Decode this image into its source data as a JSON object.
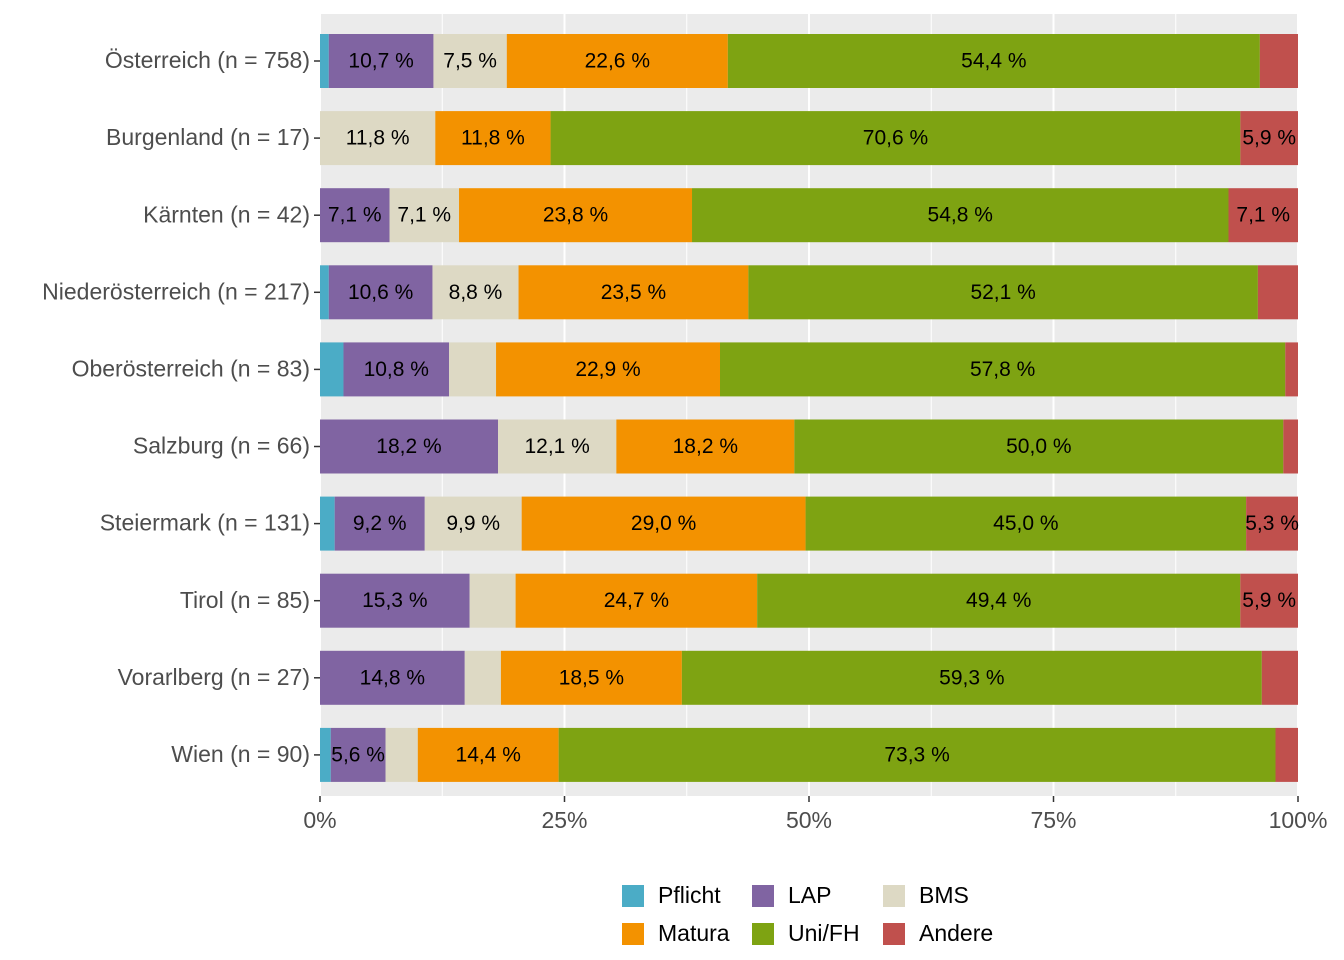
{
  "chart_data": {
    "type": "bar",
    "orientation": "horizontal",
    "stacked": "percent",
    "categories": [
      "Österreich (n = 758)",
      "Burgenland (n = 17)",
      "Kärnten (n = 42)",
      "Niederösterreich (n = 217)",
      "Oberösterreich (n = 83)",
      "Salzburg (n = 66)",
      "Steiermark (n = 131)",
      "Tirol (n = 85)",
      "Vorarlberg (n = 27)",
      "Wien (n = 90)"
    ],
    "series": [
      {
        "name": "Pflicht",
        "color": "#4BACC6",
        "values": [
          0.9,
          0,
          0,
          0.9,
          2.4,
          0,
          1.5,
          0,
          0,
          1.1
        ],
        "labels": [
          "",
          "",
          "",
          "",
          "",
          "",
          "",
          "",
          "",
          ""
        ]
      },
      {
        "name": "LAP",
        "color": "#8064A2",
        "values": [
          10.7,
          0,
          7.1,
          10.6,
          10.8,
          18.2,
          9.2,
          15.3,
          14.8,
          5.6
        ],
        "labels": [
          "10,7 %",
          "",
          "7,1 %",
          "10,6 %",
          "10,8 %",
          "18,2 %",
          "9,2 %",
          "15,3 %",
          "14,8 %",
          "5,6 %"
        ]
      },
      {
        "name": "BMS",
        "color": "#DDD9C4",
        "values": [
          7.5,
          11.8,
          7.1,
          8.8,
          4.8,
          12.1,
          9.9,
          4.7,
          3.7,
          3.3
        ],
        "labels": [
          "7,5 %",
          "11,8 %",
          "7,1 %",
          "8,8 %",
          "",
          "12,1 %",
          "9,9 %",
          "",
          "",
          ""
        ]
      },
      {
        "name": "Matura",
        "color": "#F39200",
        "values": [
          22.6,
          11.8,
          23.8,
          23.5,
          22.9,
          18.2,
          29.0,
          24.7,
          18.5,
          14.4
        ],
        "labels": [
          "22,6 %",
          "11,8 %",
          "23,8 %",
          "23,5 %",
          "22,9 %",
          "18,2 %",
          "29,0 %",
          "24,7 %",
          "18,5 %",
          "14,4 %"
        ]
      },
      {
        "name": "Uni/FH",
        "color": "#7EA312",
        "values": [
          54.4,
          70.6,
          54.8,
          52.1,
          57.8,
          50.0,
          45.0,
          49.4,
          59.3,
          73.3
        ],
        "labels": [
          "54,4 %",
          "70,6 %",
          "54,8 %",
          "52,1 %",
          "57,8 %",
          "50,0 %",
          "45,0 %",
          "49,4 %",
          "59,3 %",
          "73,3 %"
        ]
      },
      {
        "name": "Andere",
        "color": "#C0504D",
        "values": [
          3.9,
          5.9,
          7.1,
          4.1,
          1.3,
          1.5,
          5.3,
          5.9,
          3.7,
          2.3
        ],
        "labels": [
          "",
          "5,9 %",
          "7,1 %",
          "",
          "",
          "",
          "5,3 %",
          "5,9 %",
          "",
          ""
        ]
      }
    ],
    "xticks": [
      "0%",
      "25%",
      "50%",
      "75%",
      "100%"
    ],
    "xlim": [
      0,
      100
    ],
    "xlabel": "",
    "ylabel": "",
    "title": "",
    "grid": true,
    "legend_position": "bottom",
    "colors": {
      "panel_bg": "#EBEBEB",
      "grid": "#FFFFFF",
      "axis_text": "#4D4D4D"
    }
  }
}
